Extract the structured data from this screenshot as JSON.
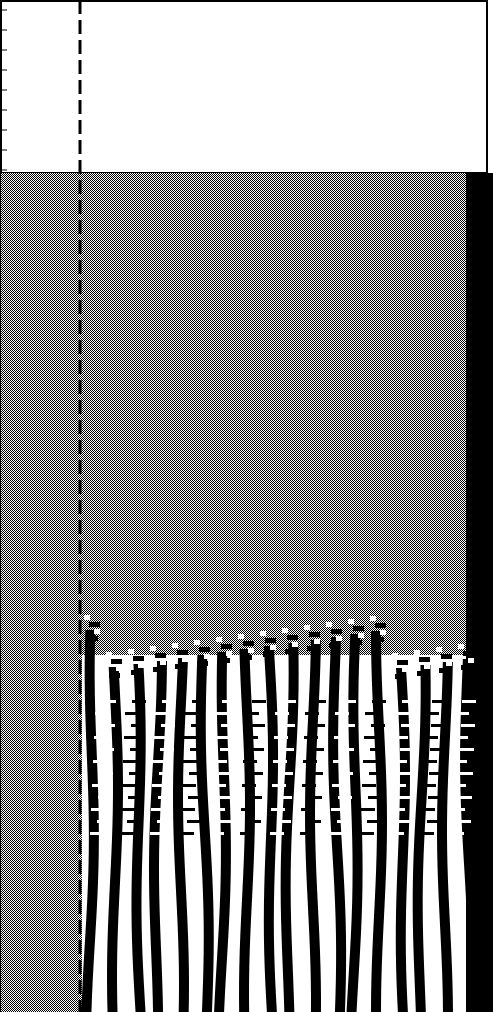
{
  "view": {
    "kind": "seismic-style trace section (no printed labels)",
    "colors": {
      "background": "#ffffff",
      "frame": "#000000",
      "noise_fill": "#bdbdbd",
      "trace_positive": "#000000",
      "trace_negative": "#ffffff",
      "dashed_marker": "#000000",
      "right_edge_bar": "#000000"
    },
    "icons": [],
    "has_text": false
  }
}
